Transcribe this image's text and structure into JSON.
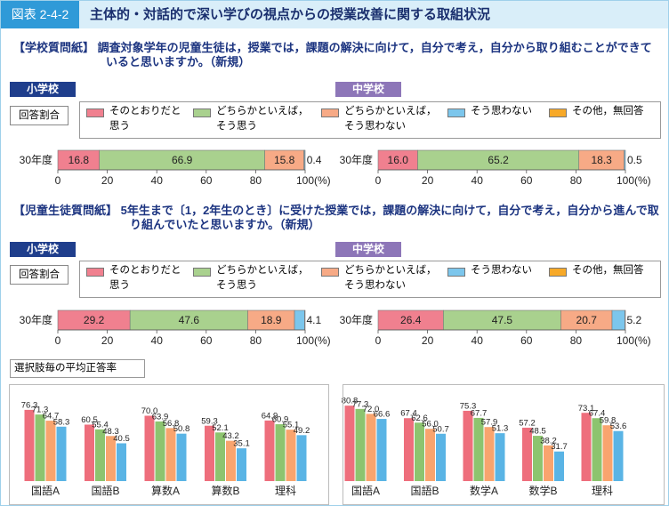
{
  "header": {
    "figure_no": "図表 2-4-2",
    "title": "主体的・対話的で深い学びの視点からの授業改善に関する取組状況"
  },
  "questions": [
    "【学校質問紙】 調査対象学年の児童生徒は，授業では，課題の解決に向けて，自分で考え，自分から取り組むことができていると思いますか。（新規）",
    "【児童生徒質問紙】 5年生まで〔1，2年生のとき〕に受けた授業では，課題の解決に向けて，自分で考え，自分から進んで取り組んでいたと思いますか。（新規）"
  ],
  "section_title": "選択肢毎の平均正答率",
  "chart_data": [
    {
      "type": "stacked_bar_h",
      "title": "小学校",
      "legend_title": "回答割合",
      "categories": [
        "30年度"
      ],
      "series": [
        {
          "name": "そのとおりだと思う",
          "color": "#f0808f",
          "values": [
            16.8
          ]
        },
        {
          "name": "どちらかといえば，そう思う",
          "color": "#a9d18e",
          "values": [
            66.9
          ]
        },
        {
          "name": "どちらかといえば，そう思わない",
          "color": "#f7aa86",
          "values": [
            15.8
          ]
        },
        {
          "name": "そう思わない",
          "color": "#7cc6ec",
          "values": [
            0.4
          ]
        },
        {
          "name": "その他，無回答",
          "color": "#f7a928",
          "values": [
            0.1
          ],
          "show_labels": false
        }
      ],
      "xlim": [
        0,
        100
      ],
      "xticks": [
        0,
        20,
        40,
        60,
        80,
        100
      ],
      "xlabel": "(%)"
    },
    {
      "type": "stacked_bar_h",
      "title": "中学校",
      "categories": [
        "30年度"
      ],
      "series": [
        {
          "color": "#f0808f",
          "values": [
            16.0
          ],
          "value_labels": [
            "16.0"
          ]
        },
        {
          "color": "#a9d18e",
          "values": [
            65.2
          ]
        },
        {
          "color": "#f7aa86",
          "values": [
            18.3
          ]
        },
        {
          "color": "#7cc6ec",
          "values": [
            0.5
          ]
        },
        {
          "color": "#f7a928",
          "values": [
            0.0
          ],
          "show_labels": false
        }
      ],
      "xlim": [
        0,
        100
      ],
      "xticks": [
        0,
        20,
        40,
        60,
        80,
        100
      ],
      "xlabel": "(%)"
    },
    {
      "type": "stacked_bar_h",
      "title": "小学校",
      "legend_title": "回答割合",
      "categories": [
        "30年度"
      ],
      "series": [
        {
          "name": "そのとおりだと思う",
          "color": "#f0808f",
          "values": [
            29.2
          ]
        },
        {
          "name": "どちらかといえば，そう思う",
          "color": "#a9d18e",
          "values": [
            47.6
          ]
        },
        {
          "name": "どちらかといえば，そう思わない",
          "color": "#f7aa86",
          "values": [
            18.9
          ]
        },
        {
          "name": "そう思わない",
          "color": "#7cc6ec",
          "values": [
            4.1
          ]
        },
        {
          "name": "その他，無回答",
          "color": "#f7a928",
          "values": [
            0.2
          ],
          "show_labels": false
        }
      ],
      "xlim": [
        0,
        100
      ],
      "xticks": [
        0,
        20,
        40,
        60,
        80,
        100
      ],
      "xlabel": "(%)"
    },
    {
      "type": "stacked_bar_h",
      "title": "中学校",
      "categories": [
        "30年度"
      ],
      "series": [
        {
          "color": "#f0808f",
          "values": [
            26.4
          ]
        },
        {
          "color": "#a9d18e",
          "values": [
            47.5
          ]
        },
        {
          "color": "#f7aa86",
          "values": [
            20.7
          ]
        },
        {
          "color": "#7cc6ec",
          "values": [
            5.2
          ]
        },
        {
          "color": "#f7a928",
          "values": [
            0.2
          ],
          "show_labels": false
        }
      ],
      "xlim": [
        0,
        100
      ],
      "xticks": [
        0,
        20,
        40,
        60,
        80,
        100
      ],
      "xlabel": "(%)"
    },
    {
      "type": "grouped_bar",
      "categories": [
        "国語A",
        "国語B",
        "算数A",
        "算数B",
        "理科"
      ],
      "series": [
        {
          "color": "#ee6e7c",
          "values": [
            76.3,
            60.5,
            70.0,
            59.3,
            64.9
          ],
          "value_labels": [
            "76.3",
            "60.5",
            "70.0",
            "59.3",
            "64.9"
          ]
        },
        {
          "color": "#8dc46f",
          "values": [
            71.3,
            55.4,
            63.9,
            52.1,
            60.9
          ]
        },
        {
          "color": "#f9a46e",
          "values": [
            64.7,
            48.3,
            56.8,
            43.2,
            55.1
          ]
        },
        {
          "color": "#5ab4e5",
          "values": [
            58.3,
            40.5,
            50.8,
            35.1,
            49.2
          ]
        }
      ]
    },
    {
      "type": "grouped_bar",
      "categories": [
        "国語A",
        "国語B",
        "数学A",
        "数学B",
        "理科"
      ],
      "series": [
        {
          "color": "#ee6e7c",
          "values": [
            80.8,
            67.4,
            75.3,
            57.2,
            73.1
          ]
        },
        {
          "color": "#8dc46f",
          "values": [
            77.3,
            62.6,
            67.7,
            48.5,
            67.4
          ]
        },
        {
          "color": "#f9a46e",
          "values": [
            72.0,
            56.0,
            57.9,
            38.2,
            59.8
          ],
          "value_labels": [
            "72.0",
            "56.0",
            "57.9",
            "38.2",
            "59.8"
          ]
        },
        {
          "color": "#5ab4e5",
          "values": [
            66.6,
            50.7,
            51.3,
            31.7,
            53.6
          ]
        }
      ]
    }
  ]
}
